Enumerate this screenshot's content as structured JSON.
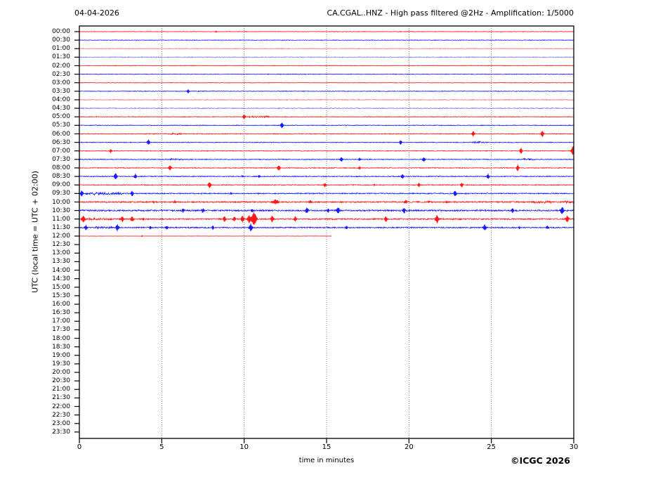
{
  "header": {
    "date": "04-04-2026",
    "title": "CA.CGAL..HNZ - High pass filtered @2Hz - Amplification: 1/5000"
  },
  "footer": {
    "copyright": "©ICGC 2026"
  },
  "axes": {
    "y_label": "UTC (local time = UTC + 02:00)",
    "x_label": "time in minutes",
    "x_ticks": [
      0,
      5,
      10,
      15,
      20,
      25,
      30
    ],
    "x_grid": [
      5,
      10,
      15,
      20,
      25
    ]
  },
  "colors": {
    "red": "#ff0000",
    "blue": "#0000ff",
    "grid": "#777777",
    "frame": "#000000"
  },
  "chart_data": {
    "type": "line",
    "subtype": "helicorder",
    "title": "CA.CGAL..HNZ - High pass filtered @2Hz - Amplification: 1/5000",
    "date": "04-04-2026",
    "xlabel": "time in minutes",
    "ylabel": "UTC (local time = UTC + 02:00)",
    "xlim": [
      0,
      30
    ],
    "minutes_per_row": 30,
    "grid": "vertical-dotted",
    "rows": [
      {
        "t": "00:00",
        "color": "red",
        "noise": 0.35,
        "spikes": [
          [
            8.3,
            1.2,
            0.07
          ]
        ],
        "fuzz": []
      },
      {
        "t": "00:30",
        "color": "blue",
        "noise": 0.35,
        "spikes": [],
        "fuzz": []
      },
      {
        "t": "01:00",
        "color": "red",
        "noise": 0.5,
        "soft": true,
        "spikes": [],
        "fuzz": []
      },
      {
        "t": "01:30",
        "color": "blue",
        "noise": 0.5,
        "soft": true,
        "spikes": [],
        "fuzz": []
      },
      {
        "t": "02:00",
        "color": "red",
        "noise": 0.35,
        "spikes": [],
        "fuzz": []
      },
      {
        "t": "02:30",
        "color": "blue",
        "noise": 0.4,
        "spikes": [],
        "fuzz": []
      },
      {
        "t": "03:00",
        "color": "red",
        "noise": 0.35,
        "spikes": [],
        "fuzz": []
      },
      {
        "t": "03:30",
        "color": "blue",
        "noise": 0.4,
        "spikes": [
          [
            6.6,
            2.8,
            0.1
          ]
        ],
        "fuzz": []
      },
      {
        "t": "04:00",
        "color": "red",
        "noise": 0.6,
        "soft": true,
        "spikes": [],
        "fuzz": []
      },
      {
        "t": "04:30",
        "color": "blue",
        "noise": 0.6,
        "soft": true,
        "spikes": [],
        "fuzz": []
      },
      {
        "t": "05:00",
        "color": "red",
        "noise": 0.45,
        "spikes": [
          [
            10.0,
            3.2,
            0.12
          ]
        ],
        "fuzz": [
          [
            10.3,
            11.5,
            1.1
          ]
        ]
      },
      {
        "t": "05:30",
        "color": "blue",
        "noise": 0.45,
        "spikes": [
          [
            12.3,
            4.2,
            0.12
          ]
        ],
        "fuzz": []
      },
      {
        "t": "06:00",
        "color": "red",
        "noise": 0.5,
        "spikes": [
          [
            23.9,
            3.8,
            0.12
          ],
          [
            28.1,
            4.2,
            0.12
          ]
        ],
        "fuzz": [
          [
            5.3,
            6.2,
            1.1
          ]
        ]
      },
      {
        "t": "06:30",
        "color": "blue",
        "noise": 0.45,
        "spikes": [
          [
            4.2,
            3.8,
            0.12
          ],
          [
            19.5,
            3.2,
            0.1
          ]
        ],
        "fuzz": [
          [
            23.8,
            24.6,
            0.9
          ]
        ]
      },
      {
        "t": "07:00",
        "color": "red",
        "noise": 0.45,
        "spikes": [
          [
            1.9,
            2.8,
            0.1
          ],
          [
            26.8,
            4.0,
            0.12
          ],
          [
            29.95,
            6.5,
            0.15
          ]
        ],
        "fuzz": []
      },
      {
        "t": "07:30",
        "color": "blue",
        "noise": 0.5,
        "spikes": [
          [
            15.9,
            3.4,
            0.11
          ],
          [
            17.0,
            2.2,
            0.09
          ],
          [
            20.9,
            3.3,
            0.11
          ]
        ],
        "fuzz": [
          [
            5.5,
            6.3,
            0.9
          ],
          [
            26.9,
            27.7,
            0.9
          ]
        ]
      },
      {
        "t": "08:00",
        "color": "red",
        "noise": 0.5,
        "spikes": [
          [
            5.5,
            3.8,
            0.11
          ],
          [
            12.1,
            3.8,
            0.12
          ],
          [
            17.0,
            2.2,
            0.09
          ],
          [
            26.6,
            4.6,
            0.12
          ]
        ],
        "fuzz": []
      },
      {
        "t": "08:30",
        "color": "blue",
        "noise": 0.55,
        "spikes": [
          [
            2.2,
            4.6,
            0.14
          ],
          [
            3.4,
            3.6,
            0.11
          ],
          [
            9.9,
            1.4,
            0.07
          ],
          [
            10.9,
            1.8,
            0.08
          ],
          [
            19.6,
            3.2,
            0.11
          ],
          [
            24.8,
            3.8,
            0.11
          ]
        ],
        "fuzz": []
      },
      {
        "t": "09:00",
        "color": "red",
        "noise": 0.55,
        "spikes": [
          [
            7.9,
            4.2,
            0.13
          ],
          [
            14.9,
            2.8,
            0.1
          ],
          [
            17.9,
            1.4,
            0.07
          ],
          [
            20.6,
            3.2,
            0.11
          ],
          [
            23.2,
            3.2,
            0.11
          ]
        ],
        "fuzz": []
      },
      {
        "t": "09:30",
        "color": "blue",
        "noise": 0.65,
        "spikes": [
          [
            0.15,
            4.6,
            0.12
          ],
          [
            3.2,
            3.8,
            0.12
          ],
          [
            9.2,
            1.8,
            0.08
          ],
          [
            22.8,
            4.2,
            0.12
          ]
        ],
        "fuzz": [
          [
            0.4,
            2.6,
            1.5
          ]
        ]
      },
      {
        "t": "10:00",
        "color": "red",
        "noise": 0.85,
        "spikes": [
          [
            4.5,
            1.6,
            0.08
          ],
          [
            5.8,
            2.2,
            0.1
          ],
          [
            11.9,
            3.2,
            0.3
          ],
          [
            14.0,
            2.4,
            0.12
          ],
          [
            19.8,
            2.4,
            0.15
          ],
          [
            21.2,
            2.0,
            0.1
          ],
          [
            22.3,
            2.0,
            0.1
          ]
        ],
        "fuzz": [
          [
            27.4,
            28.6,
            1.4
          ],
          [
            29.4,
            30,
            1.1
          ]
        ]
      },
      {
        "t": "10:30",
        "color": "blue",
        "noise": 0.95,
        "spikes": [
          [
            6.3,
            2.8,
            0.1
          ],
          [
            7.5,
            3.2,
            0.11
          ],
          [
            10.5,
            2.8,
            0.1
          ],
          [
            13.8,
            4.2,
            0.13
          ],
          [
            15.1,
            2.8,
            0.1
          ],
          [
            15.7,
            4.6,
            0.14
          ],
          [
            19.7,
            3.8,
            0.12
          ],
          [
            26.3,
            3.8,
            0.12
          ],
          [
            29.3,
            5.2,
            0.15
          ]
        ],
        "fuzz": []
      },
      {
        "t": "11:00",
        "color": "red",
        "noise": 0.85,
        "spikes": [
          [
            0.25,
            5.2,
            0.15
          ],
          [
            2.6,
            4.2,
            0.12
          ],
          [
            3.2,
            4.2,
            0.12
          ],
          [
            3.9,
            1.8,
            0.08
          ],
          [
            8.8,
            3.8,
            0.12
          ],
          [
            9.4,
            3.8,
            0.12
          ],
          [
            9.9,
            5.0,
            0.14
          ],
          [
            10.3,
            5.5,
            0.15
          ],
          [
            10.6,
            9.5,
            0.22
          ],
          [
            11.7,
            4.8,
            0.13
          ],
          [
            13.1,
            3.8,
            0.12
          ],
          [
            18.6,
            3.8,
            0.13
          ],
          [
            21.7,
            5.8,
            0.16
          ],
          [
            23.1,
            1.6,
            0.08
          ],
          [
            29.6,
            4.8,
            0.14
          ]
        ],
        "fuzz": [
          [
            0.5,
            2.0,
            1.2
          ]
        ]
      },
      {
        "t": "11:30",
        "color": "blue",
        "noise": 0.75,
        "spikes": [
          [
            0.4,
            3.8,
            0.12
          ],
          [
            2.3,
            4.8,
            0.14
          ],
          [
            4.3,
            2.4,
            0.1
          ],
          [
            5.3,
            2.8,
            0.12
          ],
          [
            8.1,
            2.6,
            0.1
          ],
          [
            10.4,
            5.2,
            0.15
          ],
          [
            16.2,
            2.4,
            0.1
          ],
          [
            24.6,
            4.2,
            0.13
          ],
          [
            26.7,
            2.2,
            0.09
          ],
          [
            28.4,
            2.8,
            0.1
          ]
        ],
        "fuzz": [
          [
            1.0,
            2.0,
            1.1
          ]
        ]
      },
      {
        "t": "12:00",
        "color": "red",
        "noise": 0.2,
        "end": 15.3,
        "spikes": [
          [
            3.8,
            0.9,
            0.06
          ]
        ],
        "fuzz": []
      },
      {
        "t": "12:30",
        "color": "blue",
        "empty": true
      },
      {
        "t": "13:00",
        "color": "red",
        "empty": true
      },
      {
        "t": "13:30",
        "color": "blue",
        "empty": true
      },
      {
        "t": "14:00",
        "color": "red",
        "empty": true
      },
      {
        "t": "14:30",
        "color": "blue",
        "empty": true
      },
      {
        "t": "15:00",
        "color": "red",
        "empty": true
      },
      {
        "t": "15:30",
        "color": "blue",
        "empty": true
      },
      {
        "t": "16:00",
        "color": "red",
        "empty": true
      },
      {
        "t": "16:30",
        "color": "blue",
        "empty": true
      },
      {
        "t": "17:00",
        "color": "red",
        "empty": true
      },
      {
        "t": "17:30",
        "color": "blue",
        "empty": true
      },
      {
        "t": "18:00",
        "color": "red",
        "empty": true
      },
      {
        "t": "18:30",
        "color": "blue",
        "empty": true
      },
      {
        "t": "19:00",
        "color": "red",
        "empty": true
      },
      {
        "t": "19:30",
        "color": "blue",
        "empty": true
      },
      {
        "t": "20:00",
        "color": "red",
        "empty": true
      },
      {
        "t": "20:30",
        "color": "blue",
        "empty": true
      },
      {
        "t": "21:00",
        "color": "red",
        "empty": true
      },
      {
        "t": "21:30",
        "color": "blue",
        "empty": true
      },
      {
        "t": "22:00",
        "color": "red",
        "empty": true
      },
      {
        "t": "22:30",
        "color": "blue",
        "empty": true
      },
      {
        "t": "23:00",
        "color": "red",
        "empty": true
      },
      {
        "t": "23:30",
        "color": "blue",
        "empty": true
      }
    ]
  }
}
